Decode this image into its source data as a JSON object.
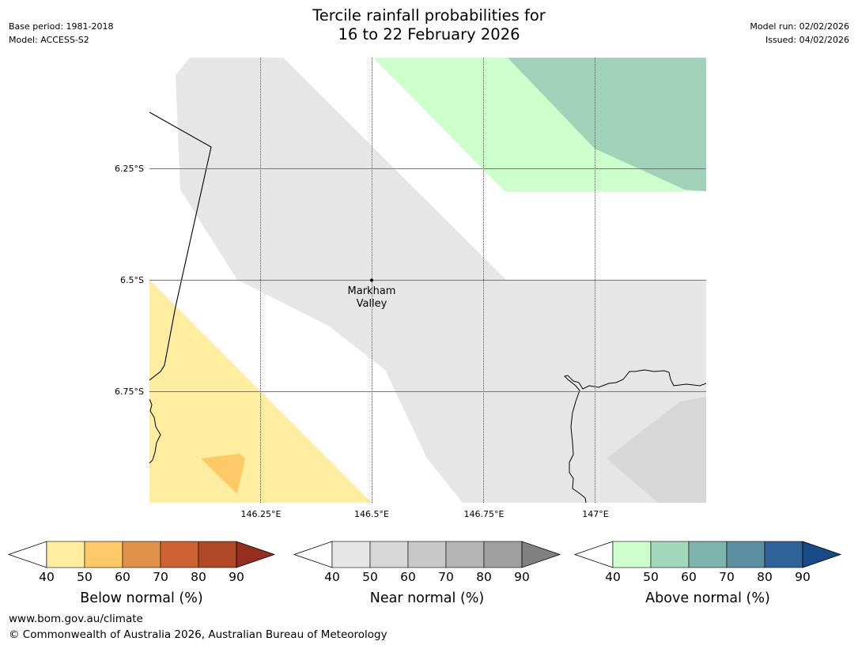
{
  "header": {
    "title_line1": "Tercile rainfall probabilities for",
    "title_line2": "16 to 22 February 2026",
    "base_period": "Base period: 1981-2018",
    "model": "Model: ACCESS-S2",
    "model_run": "Model run: 02/02/2026",
    "issued": "Issued: 04/02/2026"
  },
  "map": {
    "lat_labels": [
      "6.25°S",
      "6.5°S",
      "6.75°S"
    ],
    "lon_labels": [
      "146.25°E",
      "146.5°E",
      "146.75°E",
      "147°E"
    ],
    "place": {
      "name_line1": "Markham",
      "name_line2": "Valley"
    }
  },
  "legends": [
    {
      "label": "Below normal (%)",
      "ticks": [
        "40",
        "50",
        "60",
        "70",
        "80",
        "90"
      ],
      "colors": [
        "#ffeda0",
        "#fec966",
        "#e0924a",
        "#cd6232",
        "#b14827",
        "#952e1e"
      ]
    },
    {
      "label": "Near normal (%)",
      "ticks": [
        "40",
        "50",
        "60",
        "70",
        "80",
        "90"
      ],
      "colors": [
        "#e6e6e6",
        "#d7d7d7",
        "#c8c8c8",
        "#b4b4b4",
        "#a0a0a0",
        "#808080"
      ]
    },
    {
      "label": "Above normal (%)",
      "ticks": [
        "40",
        "50",
        "60",
        "70",
        "80",
        "90"
      ],
      "colors": [
        "#ccffcc",
        "#a2d8bc",
        "#7db4ae",
        "#5a90a0",
        "#2f6397",
        "#174a86"
      ]
    }
  ],
  "footer": {
    "url": "www.bom.gov.au/climate",
    "copyright": "© Commonwealth of Australia 2026, Australian Bureau of Meteorology"
  }
}
